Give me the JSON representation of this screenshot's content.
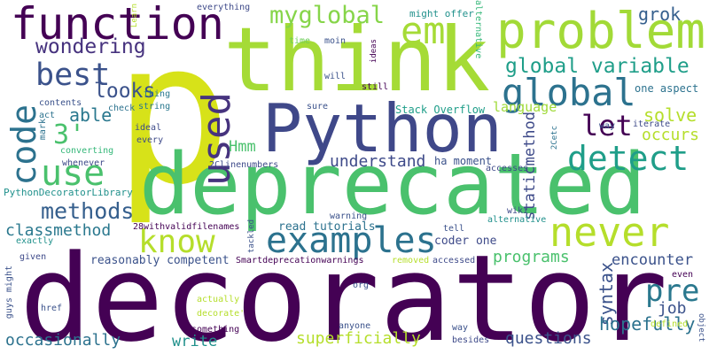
{
  "cloud_title": "",
  "palette": [
    "#440154",
    "#3b528b",
    "#21918c",
    "#5ec962",
    "#fde725"
  ],
  "words": [
    {
      "id": "p",
      "text": "p",
      "color": "#d7e219"
    },
    {
      "id": "think",
      "text": "think",
      "color": "#a5db36"
    },
    {
      "id": "deprecated",
      "text": "deprecated",
      "color": "#4ac16d"
    },
    {
      "id": "decorator",
      "text": "decorator",
      "color": "#440154"
    },
    {
      "id": "python",
      "text": "Python",
      "color": "#3f4889"
    },
    {
      "id": "function",
      "text": "function",
      "color": "#440154"
    },
    {
      "id": "problem",
      "text": "problem",
      "color": "#a2da37"
    },
    {
      "id": "em",
      "text": "em",
      "color": "#a5db36"
    },
    {
      "id": "myglobal",
      "text": "myglobal",
      "color": "#86d549"
    },
    {
      "id": "used",
      "text": "used",
      "color": "#46337e"
    },
    {
      "id": "code",
      "text": "code",
      "color": "#2c728e"
    },
    {
      "id": "best",
      "text": "best",
      "color": "#3b528b"
    },
    {
      "id": "use",
      "text": "use",
      "color": "#4ac16d"
    },
    {
      "id": "wondering",
      "text": "wondering",
      "color": "#46327e"
    },
    {
      "id": "global",
      "text": "global",
      "color": "#2c728e"
    },
    {
      "id": "global_variable",
      "text": "global variable",
      "color": "#1f9e89"
    },
    {
      "id": "language",
      "text": "language",
      "color": "#a0da39"
    },
    {
      "id": "grok",
      "text": "grok",
      "color": "#355f8d"
    },
    {
      "id": "let",
      "text": "let",
      "color": "#440154"
    },
    {
      "id": "detect",
      "text": "detect",
      "color": "#1f9e89"
    },
    {
      "id": "three",
      "text": "3'",
      "color": "#4ac16d"
    },
    {
      "id": "looks",
      "text": "looks",
      "color": "#3b528b"
    },
    {
      "id": "able",
      "text": "able",
      "color": "#2a788e"
    },
    {
      "id": "methods",
      "text": "methods",
      "color": "#355f8d"
    },
    {
      "id": "know",
      "text": "know",
      "color": "#b5de2b"
    },
    {
      "id": "never",
      "text": "never",
      "color": "#b5de2b"
    },
    {
      "id": "examples",
      "text": "examples",
      "color": "#2c728e"
    },
    {
      "id": "hmm",
      "text": "Hmm",
      "color": "#4ac16d"
    },
    {
      "id": "understand",
      "text": "understand",
      "color": "#3e4a89"
    },
    {
      "id": "classmethod",
      "text": "classmethod",
      "color": "#2a788e"
    },
    {
      "id": "staticmethod",
      "text": "staticmethod",
      "color": "#3e4a89"
    },
    {
      "id": "solve",
      "text": "solve",
      "color": "#b5de2b"
    },
    {
      "id": "occurs",
      "text": "occurs",
      "color": "#b5de2b"
    },
    {
      "id": "pre",
      "text": "pre",
      "color": "#2a788e"
    },
    {
      "id": "programs",
      "text": "programs",
      "color": "#4ac16d"
    },
    {
      "id": "syntax",
      "text": "syntax",
      "color": "#3b528b"
    },
    {
      "id": "encounter",
      "text": "encounter",
      "color": "#3b528b"
    },
    {
      "id": "job",
      "text": "job",
      "color": "#3b528b"
    },
    {
      "id": "hopefully",
      "text": "hopefully",
      "color": "#2c728e"
    },
    {
      "id": "questions",
      "text": "questions",
      "color": "#3b528b"
    },
    {
      "id": "superficially",
      "text": "superficially",
      "color": "#b5de2b"
    },
    {
      "id": "write",
      "text": "write",
      "color": "#21918c"
    },
    {
      "id": "occasionally",
      "text": "occasionally",
      "color": "#2c728e"
    },
    {
      "id": "reasonably_competent",
      "text": "reasonably competent",
      "color": "#3b528b"
    },
    {
      "id": "stack_overflow",
      "text": "Stack Overflow",
      "color": "#1f9e89"
    },
    {
      "id": "one_aspect",
      "text": "one aspect",
      "color": "#2c728e"
    },
    {
      "id": "ha_moment",
      "text": "ha moment",
      "color": "#3b528b"
    },
    {
      "id": "might_offer",
      "text": "might offer",
      "color": "#21918c"
    },
    {
      "id": "alternative_top",
      "text": "alternative",
      "color": "#35b779"
    },
    {
      "id": "everything",
      "text": "everything",
      "color": "#3e4a89"
    },
    {
      "id": "contents",
      "text": "contents",
      "color": "#3b528b"
    },
    {
      "id": "check",
      "text": "check",
      "color": "#2c728e"
    },
    {
      "id": "act",
      "text": "act",
      "color": "#2c728e"
    },
    {
      "id": "thing",
      "text": "thing",
      "color": "#2a788e"
    },
    {
      "id": "string",
      "text": "string",
      "color": "#2a788e"
    },
    {
      "id": "ideal",
      "text": "ideal",
      "color": "#3e4a89"
    },
    {
      "id": "mark",
      "text": "mark",
      "color": "#2c728e"
    },
    {
      "id": "every",
      "text": "every",
      "color": "#3e4a89"
    },
    {
      "id": "converting",
      "text": "converting",
      "color": "#35b779"
    },
    {
      "id": "whenever",
      "text": "whenever",
      "color": "#3e4a89"
    },
    {
      "id": "pydeclib",
      "text": "PythonDecoratorLibrary",
      "color": "#21918c"
    },
    {
      "id": "learn",
      "text": "Learn",
      "color": "#b5de2b"
    },
    {
      "id": "time",
      "text": "time",
      "color": "#6ece58"
    },
    {
      "id": "moin",
      "text": "moin",
      "color": "#3b528b"
    },
    {
      "id": "ideas",
      "text": "ideas",
      "color": "#440154"
    },
    {
      "id": "will",
      "text": "will",
      "color": "#3b528b"
    },
    {
      "id": "still",
      "text": "still",
      "color": "#440154"
    },
    {
      "id": "sure",
      "text": "sure",
      "color": "#3b528b"
    },
    {
      "id": "way_top",
      "text": "way",
      "color": "#3b528b"
    },
    {
      "id": "2cetc",
      "text": "2Cetc",
      "color": "#2c728e"
    },
    {
      "id": "iterate",
      "text": "iterate",
      "color": "#3e4a89"
    },
    {
      "id": "2clinenumbers",
      "text": "2Clinenumbers",
      "color": "#3e4a89"
    },
    {
      "id": "accesses",
      "text": "accesses",
      "color": "#3e4a89"
    },
    {
      "id": "28withvalid",
      "text": "28withvalidfilenames",
      "color": "#440154"
    },
    {
      "id": "warning",
      "text": "warning",
      "color": "#3b528b"
    },
    {
      "id": "read_tutorials",
      "text": "read tutorials",
      "color": "#2c728e"
    },
    {
      "id": "coder_one",
      "text": "coder one",
      "color": "#3e4a89"
    },
    {
      "id": "alternative_mid",
      "text": "alternative",
      "color": "#21918c"
    },
    {
      "id": "tackled",
      "text": "tackled",
      "color": "#3b528b"
    },
    {
      "id": "tell",
      "text": "tell",
      "color": "#3b528b"
    },
    {
      "id": "smartdep",
      "text": "Smartdeprecationwarnings",
      "color": "#440154"
    },
    {
      "id": "removed",
      "text": "removed",
      "color": "#b5de2b"
    },
    {
      "id": "accessed",
      "text": "accessed",
      "color": "#3e4a89"
    },
    {
      "id": "exactly",
      "text": "exactly",
      "color": "#21918c"
    },
    {
      "id": "guys_might",
      "text": "guys might",
      "color": "#3b528b"
    },
    {
      "id": "given",
      "text": "given",
      "color": "#3e4a89"
    },
    {
      "id": "org",
      "text": "org",
      "color": "#3b528b"
    },
    {
      "id": "href",
      "text": "href",
      "color": "#3b528b"
    },
    {
      "id": "actually",
      "text": "actually",
      "color": "#b5de2b"
    },
    {
      "id": "decorate",
      "text": "decorate'",
      "color": "#b5de2b"
    },
    {
      "id": "something",
      "text": "something",
      "color": "#440154"
    },
    {
      "id": "anyone",
      "text": "anyone",
      "color": "#3b528b"
    },
    {
      "id": "way_bottom",
      "text": "way",
      "color": "#3b528b"
    },
    {
      "id": "besides",
      "text": "besides",
      "color": "#3e4a89"
    },
    {
      "id": "defined",
      "text": "defined",
      "color": "#b5de2b"
    },
    {
      "id": "even",
      "text": "even",
      "color": "#440154"
    },
    {
      "id": "object",
      "text": "object",
      "color": "#3b528b"
    },
    {
      "id": "wiki",
      "text": "wiki",
      "color": "#3e4a89"
    }
  ]
}
